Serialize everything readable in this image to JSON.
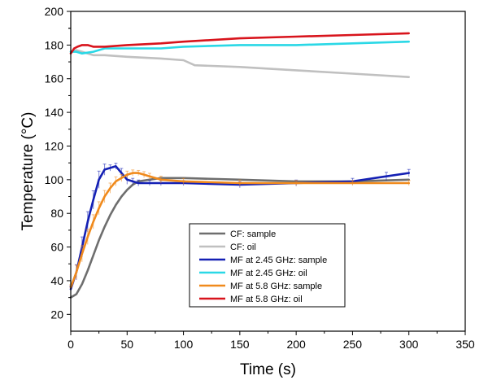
{
  "chart_data": {
    "type": "line",
    "title": "",
    "xlabel": "Time (s)",
    "ylabel": "Temperature (°C)",
    "xlim": [
      0,
      350
    ],
    "ylim": [
      10,
      200
    ],
    "xticks": [
      0,
      50,
      100,
      150,
      200,
      250,
      300,
      350
    ],
    "yticks": [
      20,
      40,
      60,
      80,
      100,
      120,
      140,
      160,
      180,
      200
    ],
    "grid": false,
    "legend_position": "bottom-center",
    "series": [
      {
        "name": "CF: sample",
        "color": "#6e6e6e",
        "x": [
          0,
          5,
          10,
          15,
          20,
          25,
          30,
          35,
          40,
          45,
          50,
          55,
          60,
          70,
          80,
          100,
          150,
          200,
          250,
          300
        ],
        "y": [
          30,
          32,
          38,
          46,
          55,
          64,
          72,
          79,
          85,
          90,
          94,
          97,
          99,
          100,
          101,
          101,
          100,
          99,
          99,
          100
        ],
        "error_bars": false
      },
      {
        "name": "CF: oil",
        "color": "#c0c0c0",
        "x": [
          0,
          5,
          10,
          15,
          20,
          30,
          50,
          80,
          100,
          110,
          150,
          200,
          250,
          300
        ],
        "y": [
          176,
          177,
          176,
          175,
          174,
          174,
          173,
          172,
          171,
          168,
          167,
          165,
          163,
          161
        ],
        "error_bars": false
      },
      {
        "name": "MF at 2.45 GHz: sample",
        "color": "#1420b4",
        "x": [
          0,
          5,
          10,
          15,
          20,
          25,
          30,
          35,
          40,
          45,
          50,
          55,
          60,
          70,
          80,
          100,
          150,
          200,
          250,
          280,
          300
        ],
        "y": [
          35,
          45,
          60,
          75,
          88,
          100,
          106,
          107,
          108,
          104,
          100,
          99,
          98,
          98,
          98,
          98,
          97,
          98,
          99,
          102,
          104
        ],
        "error_bars": true
      },
      {
        "name": "MF at 2.45 GHz: oil",
        "color": "#2ad8e6",
        "x": [
          0,
          5,
          10,
          20,
          30,
          50,
          80,
          100,
          150,
          200,
          250,
          300
        ],
        "y": [
          176,
          176,
          175,
          176,
          178,
          178,
          178,
          179,
          180,
          180,
          181,
          182
        ],
        "error_bars": false
      },
      {
        "name": "MF at 5.8 GHz: sample",
        "color": "#f08a1c",
        "x": [
          0,
          5,
          10,
          15,
          20,
          25,
          30,
          35,
          40,
          45,
          50,
          55,
          60,
          65,
          70,
          80,
          100,
          150,
          200,
          250,
          300
        ],
        "y": [
          36,
          45,
          56,
          66,
          75,
          83,
          90,
          95,
          99,
          101,
          103,
          104,
          104,
          103,
          102,
          100,
          99,
          98,
          98,
          98,
          98
        ],
        "error_bars": true
      },
      {
        "name": "MF at 5.8 GHz: oil",
        "color": "#d8141c",
        "x": [
          0,
          3,
          6,
          10,
          15,
          20,
          30,
          50,
          80,
          100,
          150,
          200,
          250,
          300
        ],
        "y": [
          175,
          178,
          179,
          180,
          180,
          179,
          179,
          180,
          181,
          182,
          184,
          185,
          186,
          187
        ],
        "error_bars": false
      }
    ]
  }
}
